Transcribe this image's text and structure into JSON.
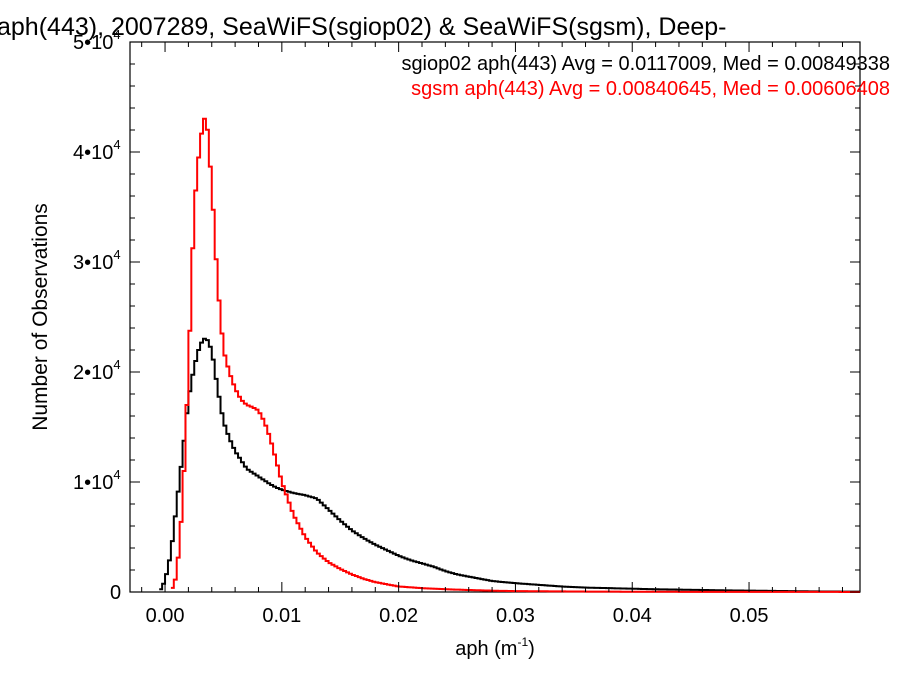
{
  "chart_data": {
    "type": "line",
    "title": "aph(443), 2007289, SeaWiFS(sgiop02) & SeaWiFS(sgsm), Deep-",
    "xlabel": "aph (m",
    "xlabel_sup": "-1",
    "xlabel_close": ")",
    "ylabel": "Number of Observations",
    "xlim": [
      -0.003,
      0.0595
    ],
    "ylim": [
      0,
      50000
    ],
    "grid": false,
    "legend_position": "top-right",
    "x_ticks": [
      {
        "value": 0.0,
        "label": "0.00"
      },
      {
        "value": 0.01,
        "label": "0.01"
      },
      {
        "value": 0.02,
        "label": "0.02"
      },
      {
        "value": 0.03,
        "label": "0.03"
      },
      {
        "value": 0.04,
        "label": "0.04"
      },
      {
        "value": 0.05,
        "label": "0.05"
      }
    ],
    "y_ticks": [
      {
        "value": 0,
        "mant": "0",
        "exp": ""
      },
      {
        "value": 10000,
        "mant": "1•10",
        "exp": "4"
      },
      {
        "value": 20000,
        "mant": "2•10",
        "exp": "4"
      },
      {
        "value": 30000,
        "mant": "3•10",
        "exp": "4"
      },
      {
        "value": 40000,
        "mant": "4•10",
        "exp": "4"
      },
      {
        "value": 50000,
        "mant": "5•10",
        "exp": "4"
      }
    ],
    "series": [
      {
        "name": "sgiop02 aph(443) Avg = 0.0117009, Med = 0.00849338",
        "color": "#000000",
        "x": [
          -0.0005,
          0.0,
          0.0005,
          0.001,
          0.0015,
          0.002,
          0.0025,
          0.003,
          0.0035,
          0.004,
          0.0045,
          0.005,
          0.0055,
          0.006,
          0.007,
          0.008,
          0.009,
          0.0095,
          0.01,
          0.011,
          0.012,
          0.013,
          0.014,
          0.015,
          0.016,
          0.017,
          0.018,
          0.019,
          0.02,
          0.021,
          0.022,
          0.023,
          0.024,
          0.025,
          0.026,
          0.027,
          0.028,
          0.03,
          0.032,
          0.034,
          0.036,
          0.038,
          0.04,
          0.042,
          0.045,
          0.048,
          0.052,
          0.056,
          0.0595
        ],
        "values": [
          0,
          1000,
          3500,
          8000,
          12500,
          17500,
          20500,
          22500,
          23200,
          22000,
          18500,
          15500,
          14000,
          12800,
          11200,
          10500,
          9800,
          9500,
          9300,
          9000,
          8800,
          8500,
          7500,
          6500,
          5600,
          4900,
          4300,
          3800,
          3300,
          2900,
          2600,
          2300,
          1900,
          1600,
          1400,
          1200,
          1000,
          800,
          650,
          500,
          400,
          350,
          300,
          250,
          200,
          150,
          100,
          50,
          30
        ]
      },
      {
        "name": "sgsm aph(443) Avg = 0.00840645, Med = 0.00606408",
        "color": "#ff0000",
        "x": [
          0.0005,
          0.001,
          0.0015,
          0.002,
          0.0025,
          0.003,
          0.0035,
          0.004,
          0.0045,
          0.005,
          0.0055,
          0.006,
          0.0065,
          0.007,
          0.0075,
          0.008,
          0.0085,
          0.009,
          0.0095,
          0.01,
          0.0105,
          0.011,
          0.0115,
          0.012,
          0.013,
          0.014,
          0.015,
          0.016,
          0.017,
          0.018,
          0.019,
          0.02,
          0.022,
          0.024,
          0.026,
          0.028,
          0.03,
          0.033,
          0.036,
          0.04,
          0.045,
          0.05,
          0.0595
        ],
        "values": [
          0,
          1500,
          8000,
          20000,
          35000,
          41000,
          43700,
          37000,
          28000,
          22000,
          20000,
          18500,
          17500,
          17000,
          16800,
          16500,
          15500,
          14000,
          12000,
          10000,
          8500,
          7000,
          6000,
          5000,
          3600,
          2700,
          2100,
          1600,
          1200,
          900,
          700,
          500,
          350,
          250,
          180,
          120,
          80,
          60,
          40,
          25,
          15,
          10,
          5
        ]
      }
    ]
  }
}
